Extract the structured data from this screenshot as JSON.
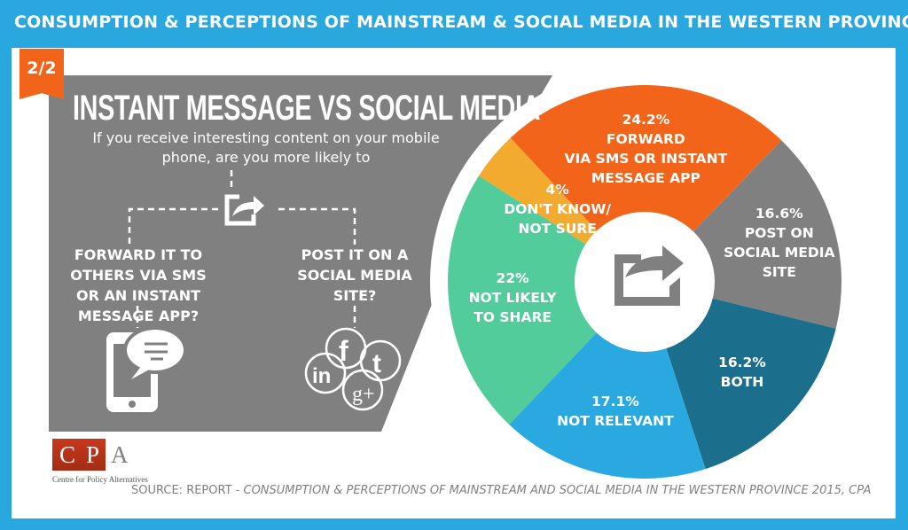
{
  "header": {
    "title": "CONSUMPTION & PERCEPTIONS OF MAINSTREAM & SOCIAL MEDIA IN THE WESTERN PROVINCE"
  },
  "badge": "2/2",
  "title": "INSTANT MESSAGE VS SOCIAL MEDIA",
  "question": "If you receive interesting content on your mobile phone, are you more likely to",
  "options": {
    "forward": "FORWARD IT TO OTHERS VIA SMS OR AN INSTANT MESSAGE APP?",
    "post": "POST IT ON A SOCIAL MEDIA SITE?"
  },
  "icons": [
    "share-icon",
    "phone-chat-icon",
    "facebook-icon",
    "twitter-icon",
    "linkedin-icon",
    "google-plus-icon"
  ],
  "logo": {
    "letters": "CPA",
    "name": "Centre for Policy Alternatives"
  },
  "source": {
    "prefix": "SOURCE: REPORT - ",
    "title": "CONSUMPTION & PERCEPTIONS OF MAINSTREAM AND SOCIAL MEDIA IN THE WESTERN PROVINCE 2015, CPA"
  },
  "chart_data": {
    "type": "pie",
    "donut": true,
    "categories": [
      "FORWARD VIA SMS OR INSTANT MESSAGE APP",
      "POST ON SOCIAL MEDIA SITE",
      "BOTH",
      "NOT RELEVANT",
      "NOT LIKELY TO SHARE",
      "DON'T KNOW/ NOT SURE"
    ],
    "values": [
      24.2,
      16.6,
      16.2,
      17.1,
      22,
      4
    ],
    "value_labels": [
      "24.2%",
      "16.6%",
      "16.2%",
      "17.1%",
      "22%",
      "4%"
    ],
    "label_lines": [
      [
        "FORWARD",
        "VIA SMS OR INSTANT",
        "MESSAGE APP"
      ],
      [
        "POST ON",
        "SOCIAL MEDIA",
        "SITE"
      ],
      [
        "BOTH"
      ],
      [
        "NOT RELEVANT"
      ],
      [
        "NOT LIKELY",
        "TO SHARE"
      ],
      [
        "DON'T KNOW/",
        "NOT SURE"
      ]
    ],
    "colors": [
      "#f26419",
      "#808080",
      "#1b6e8c",
      "#2aa8e0",
      "#52cc9b",
      "#f2aa2f"
    ]
  }
}
